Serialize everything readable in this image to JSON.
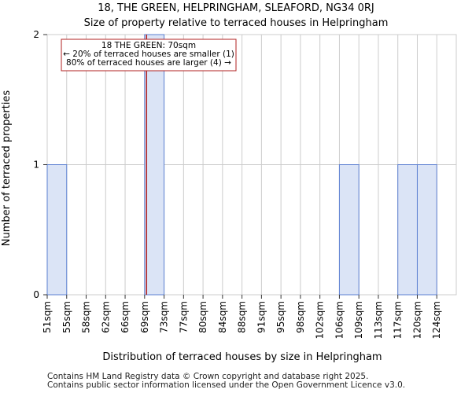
{
  "chart_data": {
    "type": "bar",
    "title": "18, THE GREEN, HELPRINGHAM, SLEAFORD, NG34 0RJ",
    "subtitle": "Size of property relative to terraced houses in Helpringham",
    "xlabel": "Distribution of terraced houses by size in Helpringham",
    "ylabel": "Number of terraced properties",
    "categories": [
      "51sqm",
      "55sqm",
      "58sqm",
      "62sqm",
      "66sqm",
      "69sqm",
      "73sqm",
      "77sqm",
      "80sqm",
      "84sqm",
      "88sqm",
      "91sqm",
      "95sqm",
      "98sqm",
      "102sqm",
      "106sqm",
      "109sqm",
      "113sqm",
      "117sqm",
      "120sqm",
      "124sqm"
    ],
    "values": [
      1,
      0,
      0,
      0,
      0,
      2,
      0,
      0,
      0,
      0,
      0,
      0,
      0,
      0,
      0,
      1,
      0,
      0,
      1,
      1,
      0
    ],
    "ylim": [
      0,
      2
    ],
    "yticks": [
      0,
      1,
      2
    ],
    "grid": true,
    "bar_color": "#dbe4f6",
    "bar_edge_color": "#5b7fd1",
    "marker": {
      "value_sqm": 70,
      "position_bin": 5,
      "position_fraction": 0.1,
      "color": "#b22222",
      "label_lines": [
        "18 THE GREEN: 70sqm",
        "← 20% of terraced houses are smaller (1)",
        "80% of terraced houses are larger (4) →"
      ]
    }
  },
  "footer": {
    "line1": "Contains HM Land Registry data © Crown copyright and database right 2025.",
    "line2": "Contains public sector information licensed under the Open Government Licence v3.0."
  }
}
